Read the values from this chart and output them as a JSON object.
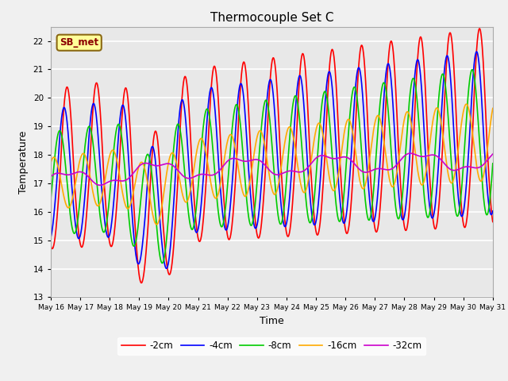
{
  "title": "Thermocouple Set C",
  "xlabel": "Time",
  "ylabel": "Temperature",
  "ylim": [
    13.0,
    22.5
  ],
  "yticks": [
    13.0,
    14.0,
    15.0,
    16.0,
    17.0,
    18.0,
    19.0,
    20.0,
    21.0,
    22.0
  ],
  "bg_color": "#e8e8e8",
  "fig_bg_color": "#f0f0f0",
  "annotation_text": "SB_met",
  "legend_entries": [
    "-2cm",
    "-4cm",
    "-8cm",
    "-16cm",
    "-32cm"
  ],
  "line_colors": [
    "#ff0000",
    "#0000ff",
    "#00cc00",
    "#ffaa00",
    "#cc00cc"
  ],
  "line_widths": [
    1.2,
    1.2,
    1.2,
    1.2,
    1.2
  ],
  "xtick_labels": [
    "May 16",
    "May 17",
    "May 18",
    "May 19",
    "May 20",
    "May 21",
    "May 22",
    "May 23",
    "May 24",
    "May 25",
    "May 26",
    "May 27",
    "May 28",
    "May 29",
    "May 30",
    "May 31"
  ],
  "n_points": 1440
}
